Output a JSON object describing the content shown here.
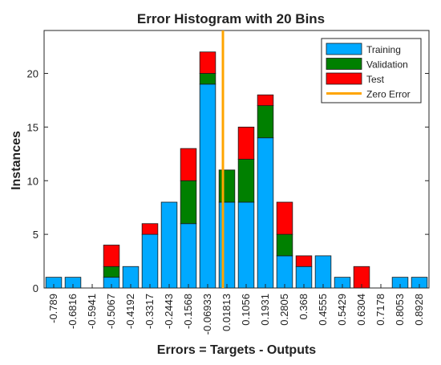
{
  "chart_data": {
    "type": "bar",
    "stacked": true,
    "title": "Error Histogram with 20 Bins",
    "xlabel": "Errors = Targets - Outputs",
    "ylabel": "Instances",
    "ylim": [
      0,
      24
    ],
    "yticks": [
      0,
      5,
      10,
      15,
      20
    ],
    "categories": [
      "-0.789",
      "-0.6816",
      "-0.5941",
      "-0.5067",
      "-0.4192",
      "-0.3317",
      "-0.2443",
      "-0.1568",
      "-0.06933",
      "0.01813",
      "0.1056",
      "0.1931",
      "0.2805",
      "0.368",
      "0.4555",
      "0.5429",
      "0.6304",
      "0.7178",
      "0.8053",
      "0.8928"
    ],
    "series": [
      {
        "name": "Training",
        "color": "#00a9ff",
        "values": [
          1,
          1,
          0,
          1,
          2,
          5,
          8,
          6,
          19,
          8,
          8,
          14,
          3,
          2,
          3,
          1,
          0,
          0,
          1,
          1
        ]
      },
      {
        "name": "Validation",
        "color": "#008000",
        "values": [
          0,
          0,
          0,
          1,
          0,
          0,
          0,
          4,
          1,
          3,
          4,
          3,
          2,
          0,
          0,
          0,
          0,
          0,
          0,
          0
        ]
      },
      {
        "name": "Test",
        "color": "#ff0000",
        "values": [
          0,
          0,
          0,
          2,
          0,
          1,
          0,
          3,
          2,
          0,
          3,
          1,
          3,
          1,
          0,
          0,
          2,
          0,
          0,
          0
        ]
      }
    ],
    "zero_error": {
      "name": "Zero Error",
      "color": "#ffa500",
      "x": 0
    },
    "legend_position": "top-right",
    "grid": false
  }
}
